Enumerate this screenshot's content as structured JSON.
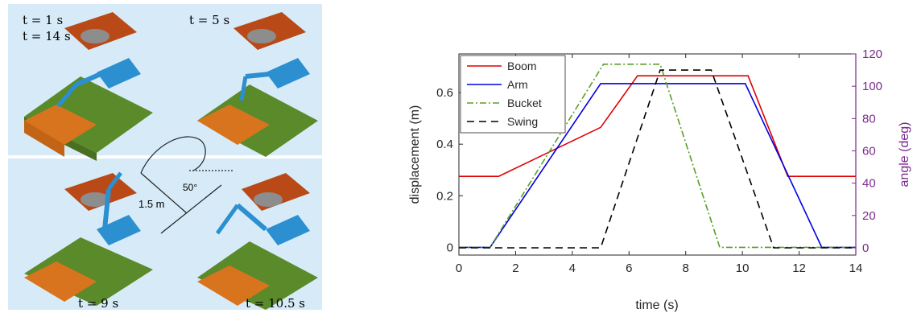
{
  "illustration": {
    "labels": {
      "t1": "t = 1 s",
      "t14": "t = 14 s",
      "t5": "t = 5 s",
      "t9": "t = 9 s",
      "t105": "t = 10.5 s",
      "dist": "1.5 m",
      "angle": "50°"
    },
    "colors": {
      "sky": "#d6ebf7",
      "grass": "#5a8a2a",
      "soil": "#d9741e",
      "truck": "#b94a18",
      "excavator": "#2b8fd0",
      "rock": "#8d8d8d"
    }
  },
  "chart_data": {
    "type": "line",
    "title": "",
    "xlabel": "time (s)",
    "ylabel": "displacement (m)",
    "y2label": "angle (deg)",
    "xlim": [
      0,
      14
    ],
    "ylim": [
      -0.03,
      0.75
    ],
    "y2lim": [
      -4.5,
      120
    ],
    "xticks": [
      0,
      2,
      4,
      6,
      8,
      10,
      12,
      14
    ],
    "yticks": [
      0,
      0.2,
      0.4,
      0.6
    ],
    "y2ticks": [
      0,
      20,
      40,
      60,
      80,
      100,
      120
    ],
    "grid": false,
    "legend_position": "top-left",
    "right_axis_color": "#7a2a8c",
    "series": [
      {
        "name": "Boom",
        "axis": "left",
        "color": "#e00000",
        "dash": "",
        "x": [
          0,
          1.4,
          5.0,
          6.3,
          10.2,
          11.6,
          14
        ],
        "y": [
          0.275,
          0.275,
          0.465,
          0.665,
          0.665,
          0.275,
          0.275
        ]
      },
      {
        "name": "Arm",
        "axis": "left",
        "color": "#0000e0",
        "dash": "",
        "x": [
          0,
          1.1,
          5.0,
          10.1,
          12.8,
          14
        ],
        "y": [
          0,
          0,
          0.635,
          0.635,
          0,
          0
        ]
      },
      {
        "name": "Bucket",
        "axis": "left",
        "color": "#5a9e28",
        "dash": "8,3,2,3",
        "x": [
          0,
          1.1,
          5.1,
          7.1,
          9.2,
          14
        ],
        "y": [
          0,
          0,
          0.71,
          0.71,
          0,
          0
        ]
      },
      {
        "name": "Swing",
        "axis": "right",
        "color": "#000000",
        "dash": "9,6",
        "x": [
          0,
          5.0,
          7.1,
          8.9,
          11.1,
          14
        ],
        "y": [
          0,
          0,
          110,
          110,
          0,
          0
        ]
      }
    ]
  }
}
